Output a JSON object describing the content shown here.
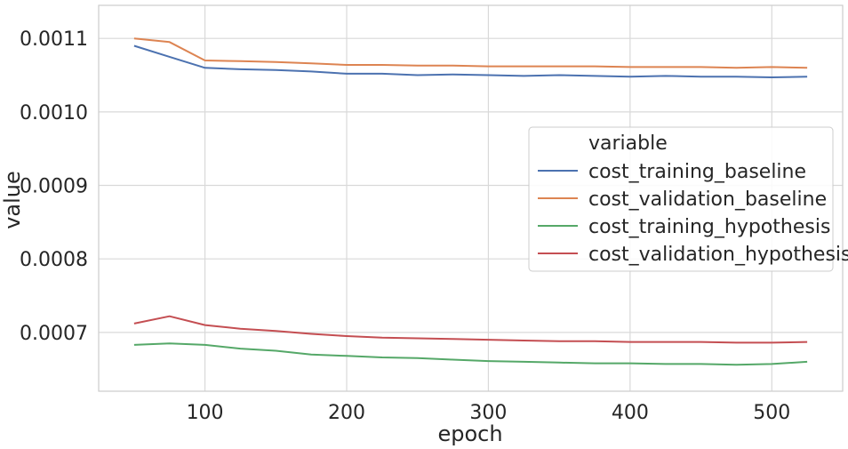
{
  "chart_data": {
    "type": "line",
    "xlabel": "epoch",
    "ylabel": "value",
    "xlim": [
      25,
      550
    ],
    "ylim": [
      0.00062,
      0.001145
    ],
    "xticks": [
      100,
      200,
      300,
      400,
      500
    ],
    "xtick_labels": [
      "100",
      "200",
      "300",
      "400",
      "500"
    ],
    "yticks": [
      0.0007,
      0.0008,
      0.0009,
      0.001,
      0.0011
    ],
    "ytick_labels": [
      "0.0007",
      "0.0008",
      "0.0009",
      "0.0010",
      "0.0011"
    ],
    "grid": true,
    "legend": {
      "title": "variable",
      "placement": "center-right"
    },
    "x": [
      50,
      75,
      100,
      125,
      150,
      175,
      200,
      225,
      250,
      275,
      300,
      325,
      350,
      375,
      400,
      425,
      450,
      475,
      500,
      525
    ],
    "series": [
      {
        "name": "cost_training_baseline",
        "color": "#4c72b0",
        "values": [
          0.00109,
          0.001075,
          0.00106,
          0.001058,
          0.001057,
          0.001055,
          0.001052,
          0.001052,
          0.00105,
          0.001051,
          0.00105,
          0.001049,
          0.00105,
          0.001049,
          0.001048,
          0.001049,
          0.001048,
          0.001048,
          0.001047,
          0.001048
        ]
      },
      {
        "name": "cost_validation_baseline",
        "color": "#dd8452",
        "values": [
          0.0011,
          0.001095,
          0.00107,
          0.001069,
          0.001068,
          0.001066,
          0.001064,
          0.001064,
          0.001063,
          0.001063,
          0.001062,
          0.001062,
          0.001062,
          0.001062,
          0.001061,
          0.001061,
          0.001061,
          0.00106,
          0.001061,
          0.00106
        ]
      },
      {
        "name": "cost_training_hypothesis",
        "color": "#55a868",
        "values": [
          0.000683,
          0.000685,
          0.000683,
          0.000678,
          0.000675,
          0.00067,
          0.000668,
          0.000666,
          0.000665,
          0.000663,
          0.000661,
          0.00066,
          0.000659,
          0.000658,
          0.000658,
          0.000657,
          0.000657,
          0.000656,
          0.000657,
          0.00066
        ]
      },
      {
        "name": "cost_validation_hypothesis",
        "color": "#c44e52",
        "values": [
          0.000712,
          0.000722,
          0.00071,
          0.000705,
          0.000702,
          0.000698,
          0.000695,
          0.000693,
          0.000692,
          0.000691,
          0.00069,
          0.000689,
          0.000688,
          0.000688,
          0.000687,
          0.000687,
          0.000687,
          0.000686,
          0.000686,
          0.000687
        ]
      }
    ]
  }
}
